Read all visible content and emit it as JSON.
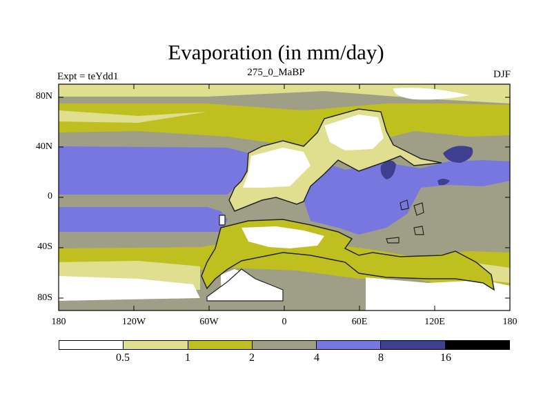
{
  "title": "Evaporation (in mm/day)",
  "left_label": "Expt = teYdd1",
  "center_label": "275_0_MaBP",
  "right_label": "DJF",
  "y_ticks": [
    "80N",
    "40N",
    "0",
    "40S",
    "80S"
  ],
  "x_ticks": [
    "180",
    "120W",
    "60W",
    "0",
    "60E",
    "120E",
    "180"
  ],
  "colorbar": {
    "labels": [
      "0.5",
      "1",
      "2",
      "4",
      "8",
      "16"
    ],
    "colors": [
      "#ffffff",
      "#dfdf8f",
      "#bfbf1f",
      "#9f9f87",
      "#7777df",
      "#3f3f8f",
      "#000000"
    ]
  }
}
